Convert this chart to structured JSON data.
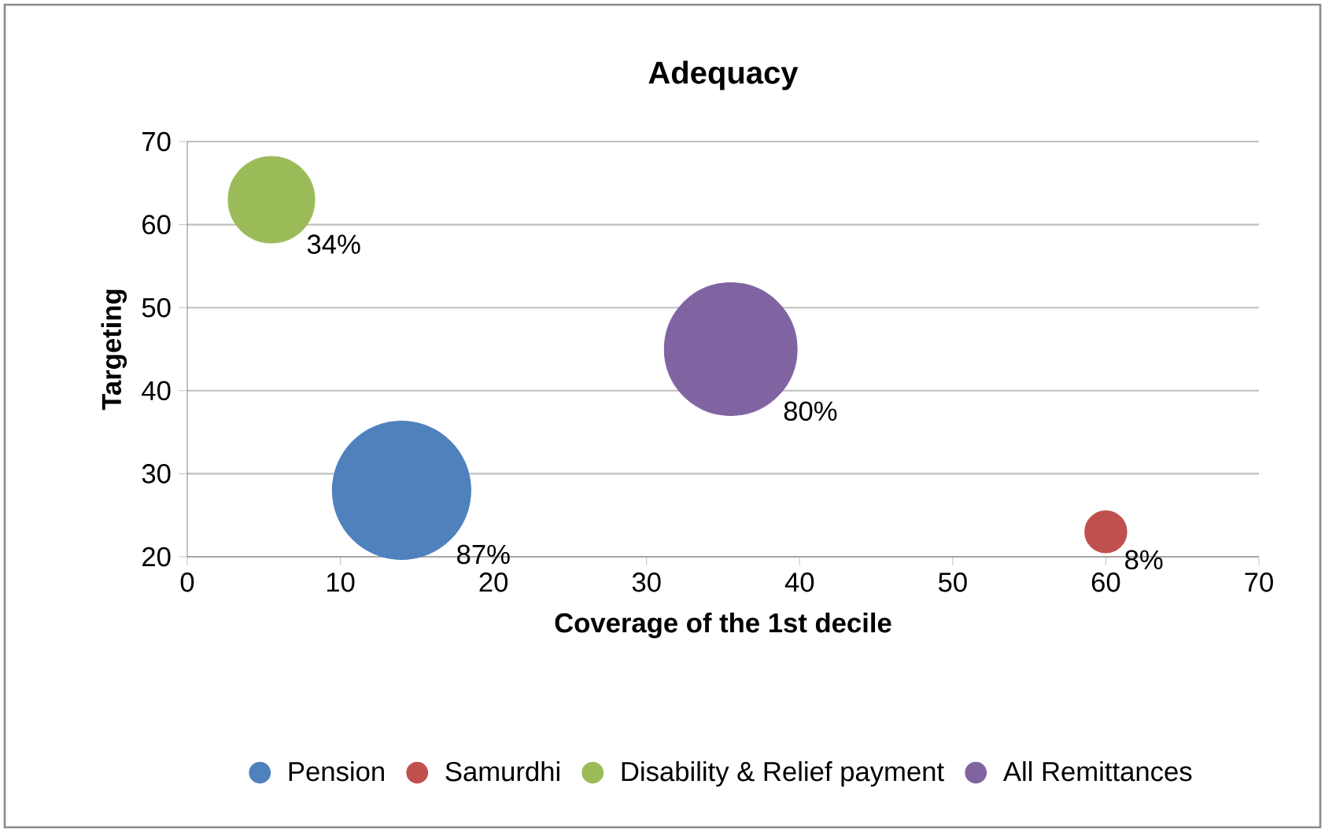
{
  "chart_data": {
    "type": "bubble",
    "title": "Adequacy",
    "xlabel": "Coverage of the 1st decile",
    "ylabel": "Targeting",
    "xlim": [
      0,
      70
    ],
    "xticks": [
      0,
      10,
      20,
      30,
      40,
      50,
      60,
      70
    ],
    "ylim": [
      20,
      70
    ],
    "yticks": [
      20,
      30,
      40,
      50,
      60,
      70
    ],
    "grid": "y",
    "legend": "bottom",
    "series": [
      {
        "name": "Pension",
        "color": "#4f81bd",
        "x": [
          14
        ],
        "values": [
          28
        ],
        "sizes": [
          87
        ],
        "value_labels": [
          "87%"
        ]
      },
      {
        "name": "Samurdhi",
        "color": "#c0504d",
        "x": [
          60
        ],
        "values": [
          23
        ],
        "sizes": [
          8
        ],
        "value_labels": [
          "8%"
        ]
      },
      {
        "name": "Disability & Relief payment",
        "color": "#9bbb59",
        "x": [
          5.5
        ],
        "values": [
          63
        ],
        "sizes": [
          34
        ],
        "value_labels": [
          "34%"
        ]
      },
      {
        "name": "All Remittances",
        "color": "#8064a2",
        "x": [
          35.5
        ],
        "values": [
          45
        ],
        "sizes": [
          80
        ],
        "value_labels": [
          "80%"
        ]
      }
    ]
  }
}
